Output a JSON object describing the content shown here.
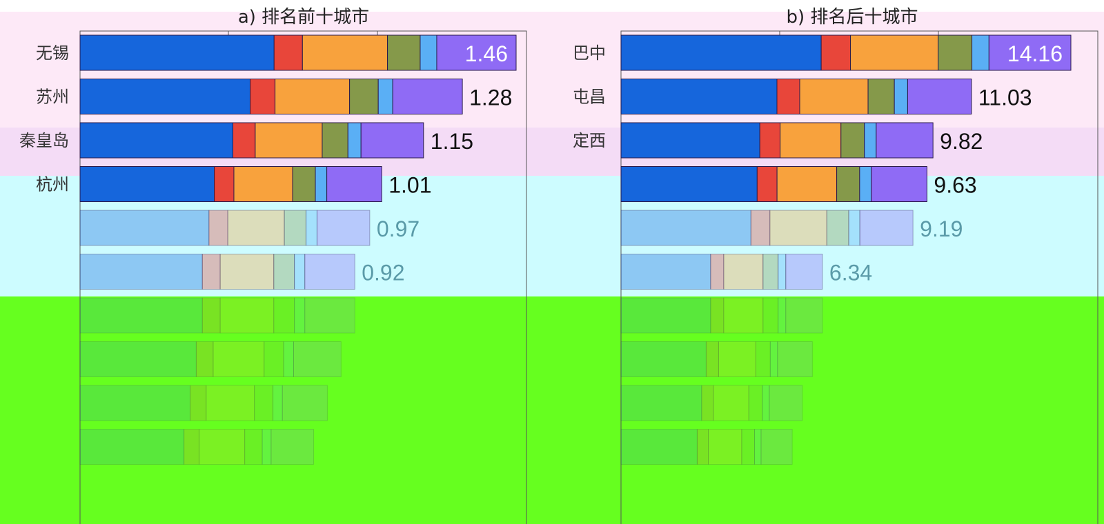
{
  "chart_data": [
    {
      "type": "bar",
      "orientation": "horizontal",
      "stacked": true,
      "title": "a) 排名前十城市",
      "categories": [
        "无锡",
        "苏州",
        "秦皇岛",
        "杭州",
        "",
        ""
      ],
      "segments_per_bar": 6,
      "segment_colors": [
        "#1666dc",
        "#e8463a",
        "#f8a23d",
        "#85994a",
        "#5aaff5",
        "#8f6bf5"
      ],
      "segment_fraction_profile": [
        0.445,
        0.065,
        0.195,
        0.075,
        0.038,
        0.182
      ],
      "totals": [
        1.46,
        1.28,
        1.15,
        1.01,
        0.97,
        0.92
      ],
      "value_labels": [
        "1.46",
        "1.28",
        "1.15",
        "1.01",
        "0.97",
        "0.92"
      ],
      "visible_rows": 6,
      "hidden_rows": 4,
      "grid": true
    },
    {
      "type": "bar",
      "orientation": "horizontal",
      "stacked": true,
      "title": "b) 排名后十城市",
      "categories": [
        "巴中",
        "屯昌",
        "定西",
        "",
        "",
        ""
      ],
      "segments_per_bar": 6,
      "segment_colors": [
        "#1666dc",
        "#e8463a",
        "#f8a23d",
        "#85994a",
        "#5aaff5",
        "#8f6bf5"
      ],
      "segment_fraction_profile": [
        0.445,
        0.065,
        0.195,
        0.075,
        0.038,
        0.182
      ],
      "totals": [
        14.16,
        11.03,
        9.82,
        9.63,
        9.19,
        6.34
      ],
      "value_labels": [
        "14.16",
        "11.03",
        "9.82",
        "9.63",
        "9.19",
        "6.34"
      ],
      "visible_rows": 6,
      "hidden_rows": 4,
      "grid": true
    }
  ],
  "colors": {
    "value_text_dark": "#111111",
    "value_text_light": "#ffffff",
    "value_text_muted": "#5a9aa8"
  }
}
